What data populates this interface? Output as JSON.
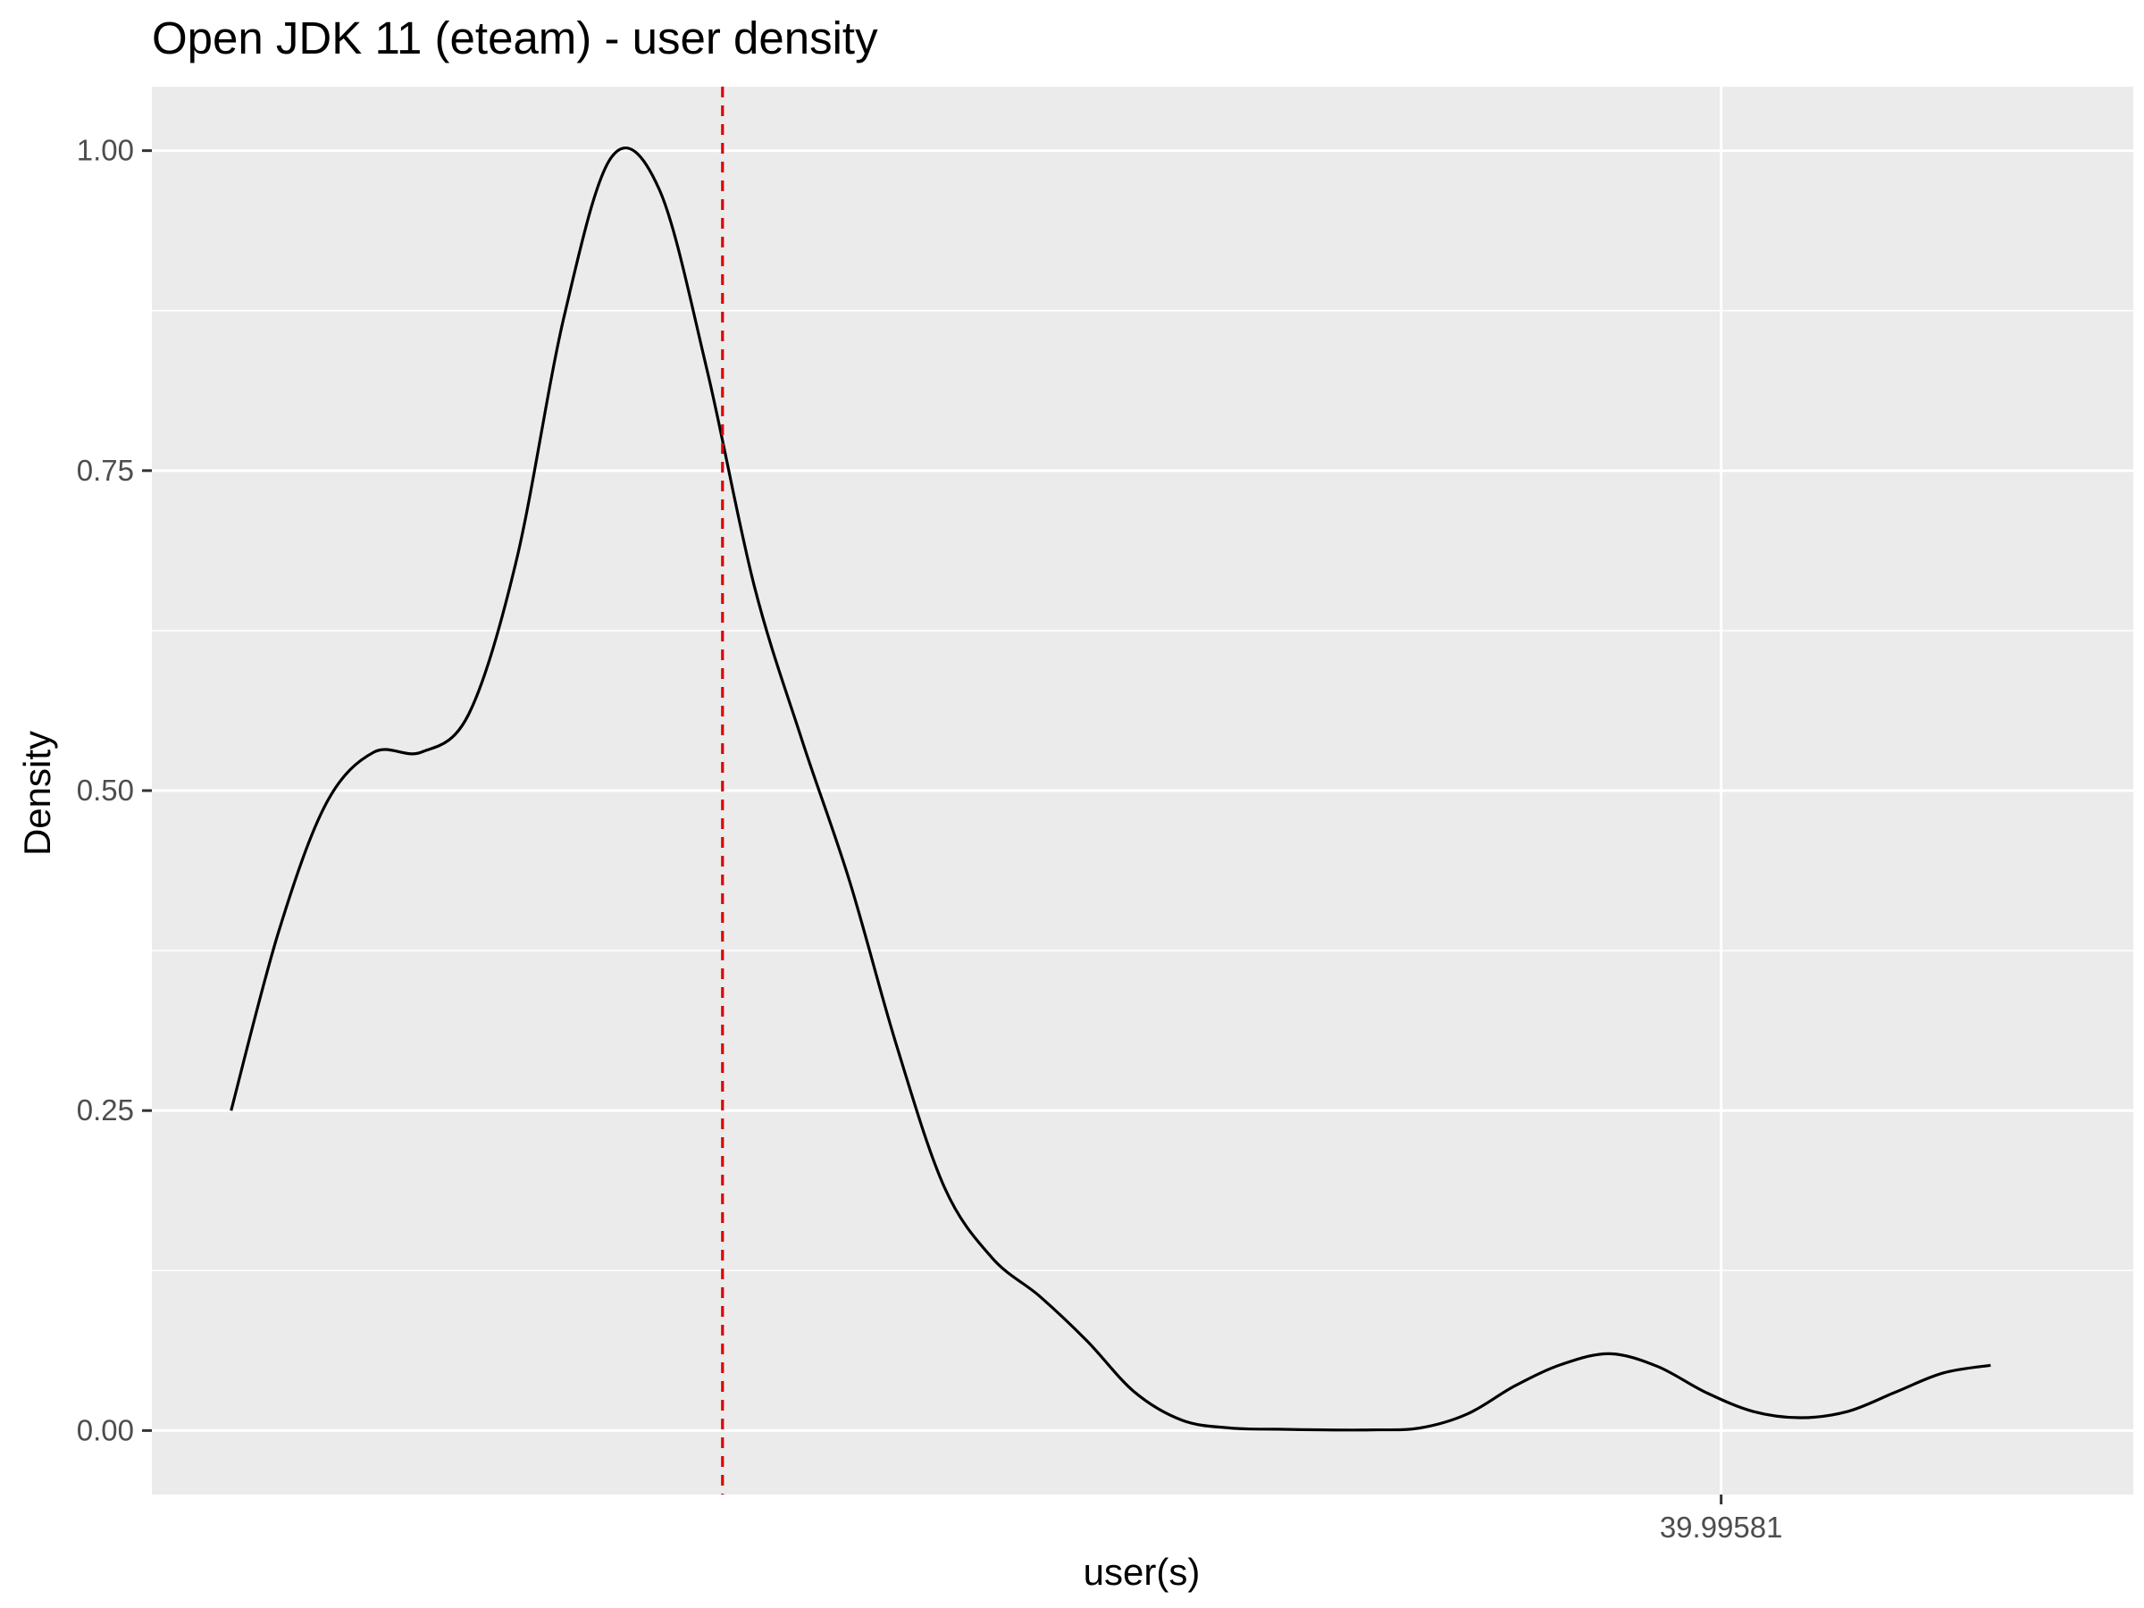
{
  "chart_data": {
    "type": "line",
    "title": "Open JDK 11 (eteam) - user density",
    "xlabel": "user(s)",
    "ylabel": "Density",
    "ylim": [
      -0.05,
      1.05
    ],
    "yticks": [
      {
        "value": 0.0,
        "label": "0.00"
      },
      {
        "value": 0.25,
        "label": "0.25"
      },
      {
        "value": 0.5,
        "label": "0.50"
      },
      {
        "value": 0.75,
        "label": "0.75"
      },
      {
        "value": 1.0,
        "label": "1.00"
      }
    ],
    "xticks": [
      {
        "value": 39.99581,
        "label": "39.99581"
      }
    ],
    "xlim": [
      39.99482,
      39.99607
    ],
    "grid": true,
    "series": [
      {
        "color": "#000000",
        "x": [
          39.99487,
          39.9949,
          39.99493,
          39.99496,
          39.99499,
          39.99502,
          39.99505,
          39.99508,
          39.99511,
          39.99514,
          39.99517,
          39.9952,
          39.99523,
          39.99526,
          39.99529,
          39.99532,
          39.99535,
          39.99538,
          39.99541,
          39.99544,
          39.99547,
          39.9955,
          39.99553,
          39.99556,
          39.99559,
          39.99562,
          39.99565,
          39.99568,
          39.99571,
          39.99574,
          39.99577,
          39.9958,
          39.99583,
          39.99586,
          39.99589,
          39.99592,
          39.99595,
          39.99598
        ],
        "y": [
          0.25,
          0.39,
          0.49,
          0.53,
          0.53,
          0.56,
          0.68,
          0.87,
          0.995,
          0.97,
          0.83,
          0.66,
          0.54,
          0.43,
          0.3,
          0.19,
          0.135,
          0.105,
          0.07,
          0.03,
          0.008,
          0.002,
          0.001,
          0.0005,
          0.0005,
          0.002,
          0.013,
          0.035,
          0.052,
          0.06,
          0.05,
          0.03,
          0.015,
          0.01,
          0.015,
          0.03,
          0.045,
          0.051
        ]
      }
    ],
    "vline": {
      "x": 39.99518,
      "color": "#dd0000",
      "style": "dashed"
    },
    "panel_background": "#ebebeb",
    "grid_color": "#ffffff"
  }
}
